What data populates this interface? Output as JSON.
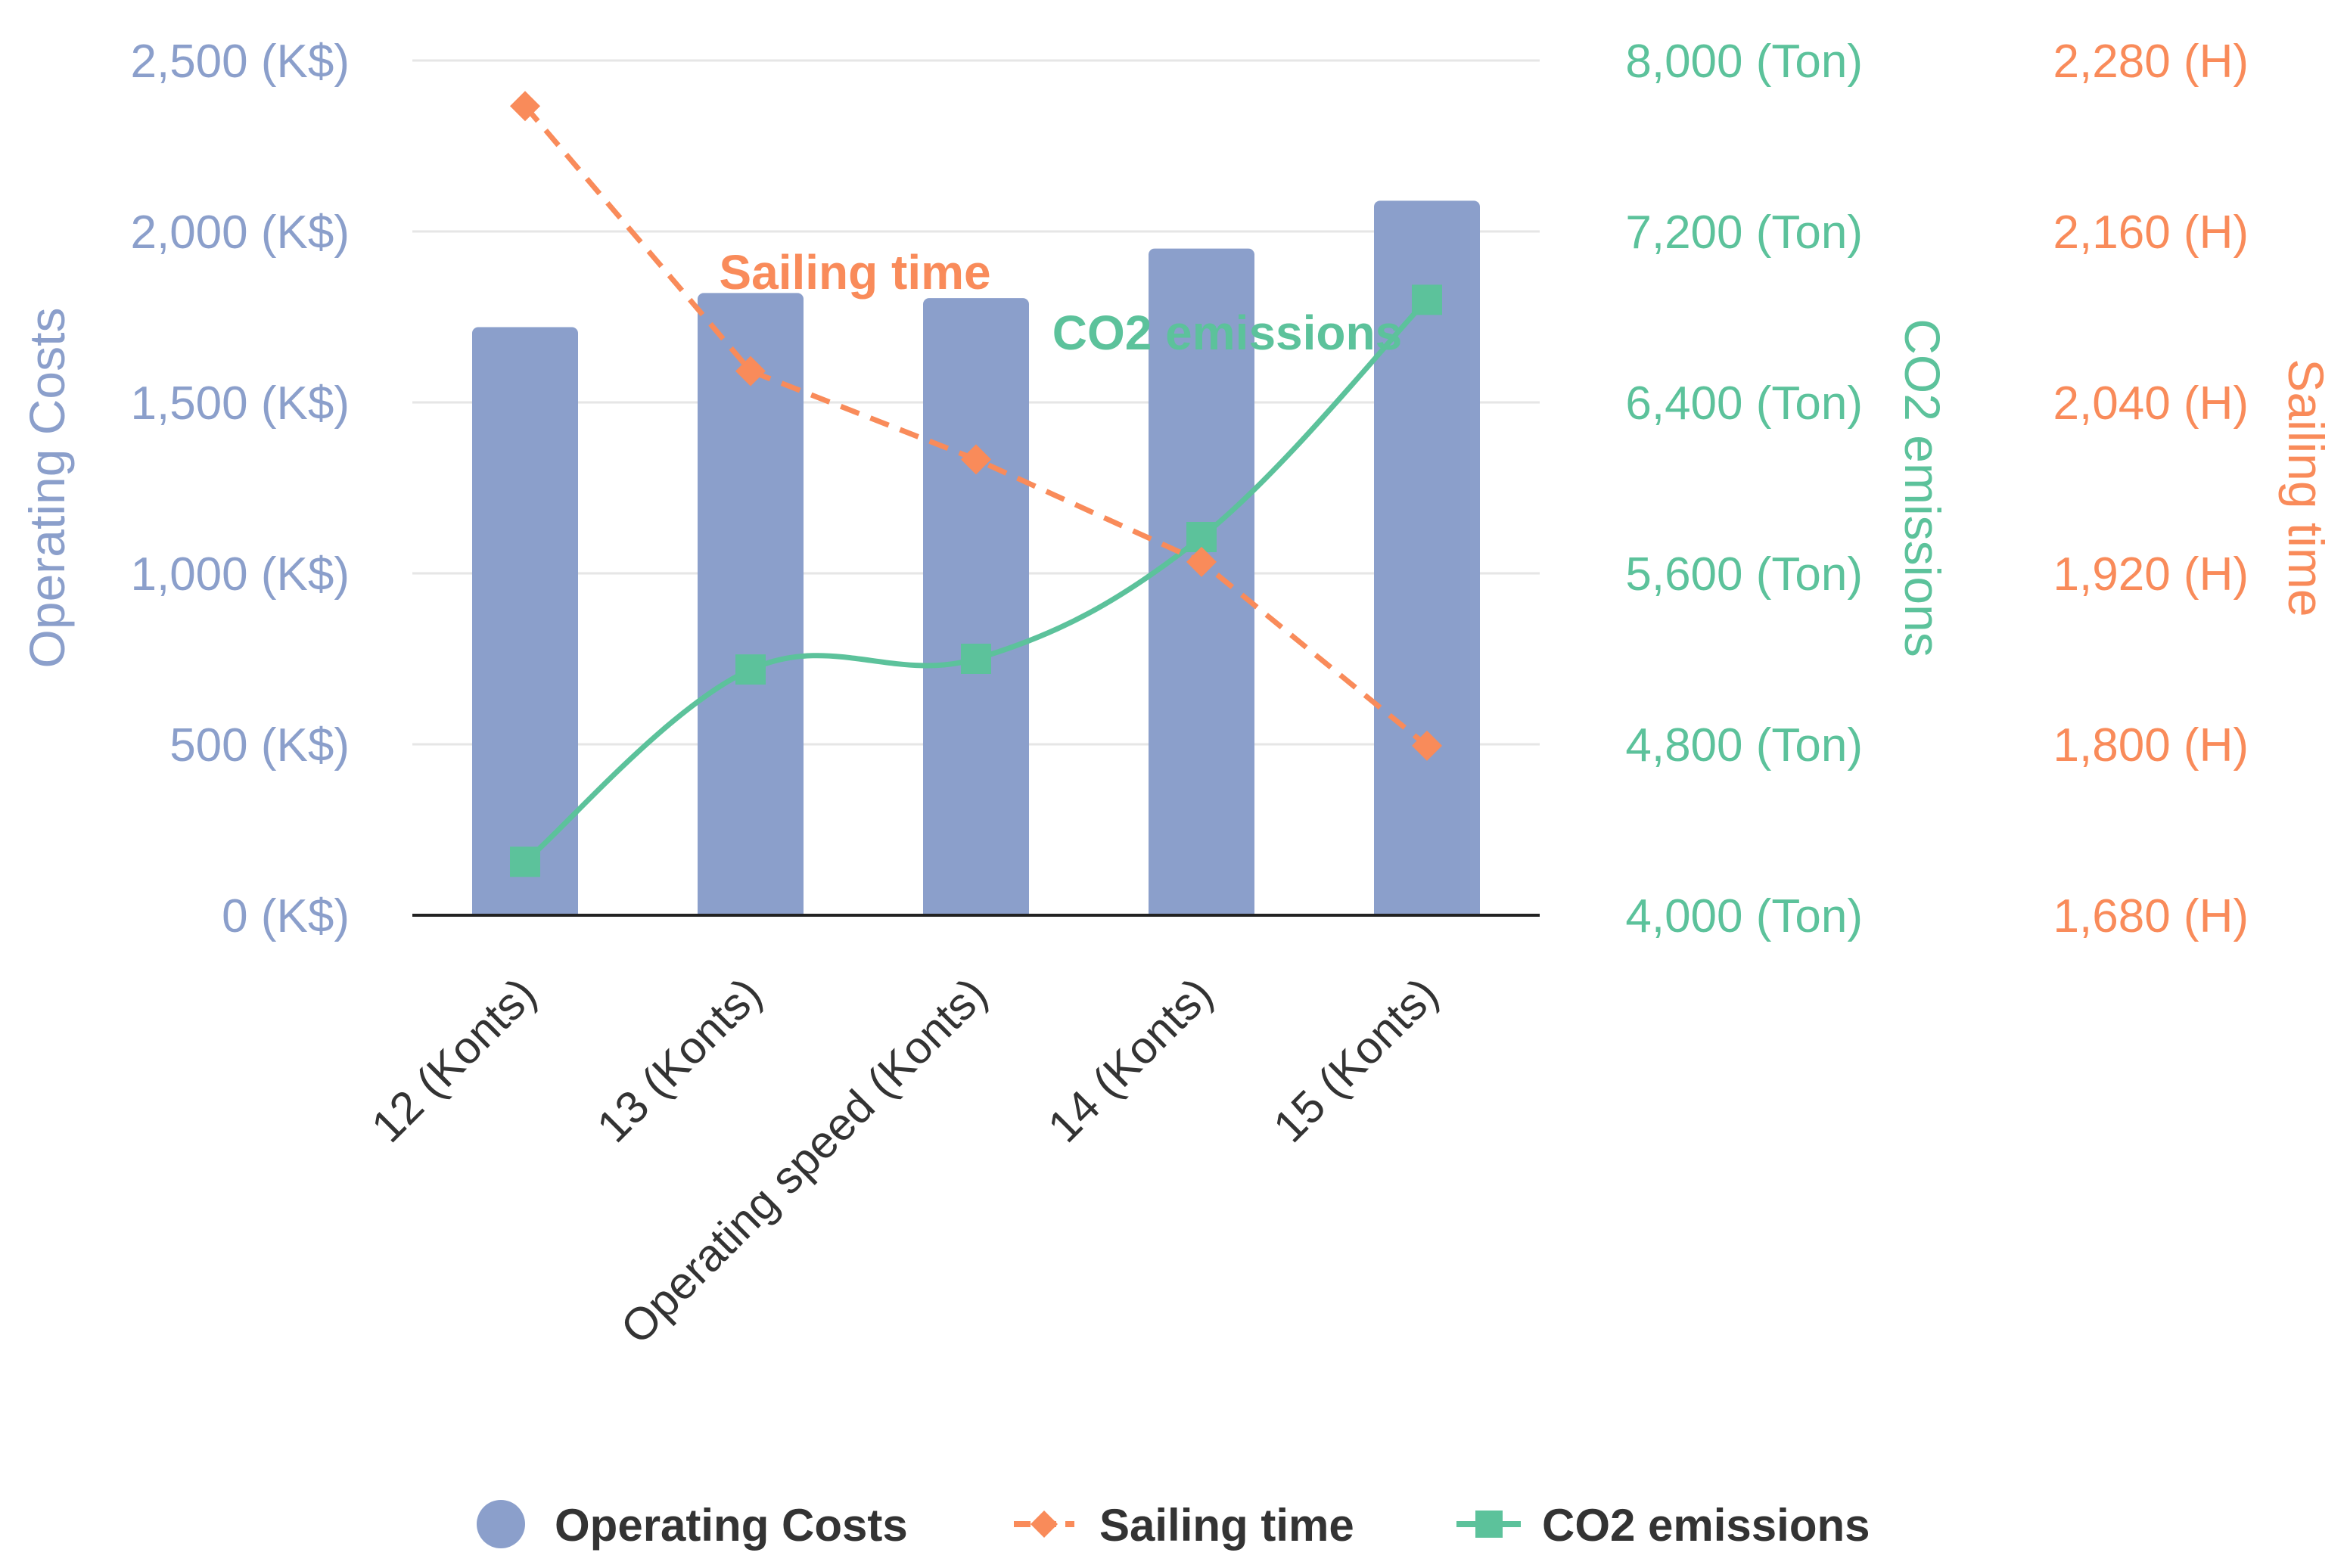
{
  "chart_data": {
    "type": "bar",
    "categories": [
      "12 (Konts)",
      "13 (Konts)",
      "Operating speed (Konts)",
      "14 (Konts)",
      "15 (Konts)"
    ],
    "series": [
      {
        "name": "Operating Costs",
        "type": "bar",
        "axis": "left",
        "color": "#8b9fcb",
        "values": [
          1720,
          1820,
          1805,
          1950,
          2090
        ]
      },
      {
        "name": "Sailing time",
        "type": "line",
        "style": "dashed",
        "marker": "diamond",
        "axis": "right-outer",
        "color": "#f98b5a",
        "values": [
          2248,
          2062,
          2000,
          1928,
          1799
        ]
      },
      {
        "name": "CO2 emissions",
        "type": "line",
        "style": "smooth",
        "marker": "square",
        "axis": "right-inner",
        "color": "#5cc29b",
        "values": [
          4250,
          5150,
          5200,
          5770,
          6880
        ]
      }
    ],
    "axes": {
      "left": {
        "title": "Operating Costs",
        "range": [
          0,
          2500
        ],
        "ticks": [
          0,
          500,
          1000,
          1500,
          2000,
          2500
        ],
        "tick_labels": [
          "0 (K$)",
          "500 (K$)",
          "1,000 (K$)",
          "1,500 (K$)",
          "2,000 (K$)",
          "2,500 (K$)"
        ],
        "color": "#8b9fcb"
      },
      "right_inner": {
        "title": "CO2 emissions",
        "range": [
          4000,
          8000
        ],
        "ticks": [
          4000,
          4800,
          5600,
          6400,
          7200,
          8000
        ],
        "tick_labels": [
          "4,000 (Ton)",
          "4,800 (Ton)",
          "5,600 (Ton)",
          "6,400 (Ton)",
          "7,200 (Ton)",
          "8,000 (Ton)"
        ],
        "color": "#5cc29b"
      },
      "right_outer": {
        "title": "Sailing time",
        "range": [
          1680,
          2280
        ],
        "ticks": [
          1680,
          1800,
          1920,
          2040,
          2160,
          2280
        ],
        "tick_labels": [
          "1,680 (H)",
          "1,800 (H)",
          "1,920 (H)",
          "2,040 (H)",
          "2,160 (H)",
          "2,280 (H)"
        ],
        "color": "#f98b5a"
      }
    },
    "annotations": [
      {
        "text": "Sailing time",
        "series": "Sailing time",
        "color": "#f98b5a"
      },
      {
        "text": "CO2 emissions",
        "series": "CO2 emissions",
        "color": "#5cc29b"
      }
    ],
    "legend": {
      "position": "bottom",
      "items": [
        "Operating Costs",
        "Sailing time",
        "CO2 emissions"
      ]
    },
    "grid": true
  }
}
